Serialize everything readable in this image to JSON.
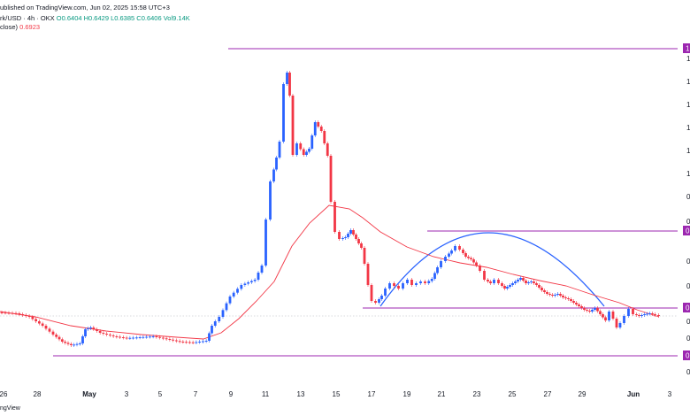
{
  "header": {
    "published": "ublished on TradingView.com, Jun 02, 2025 15:58 UTC+3",
    "symbol": "rk/USD · 4h · OKX",
    "ohlc": "O0.6404 H0.6429 L0.6385 C0.6406 Vol9.14K",
    "ma_label": "close)",
    "ma_value": "0.6923"
  },
  "footer": {
    "brand": "ngView"
  },
  "x_axis": {
    "ticks": [
      "26",
      "28",
      "May",
      "3",
      "5",
      "7",
      "9",
      "11",
      "13",
      "15",
      "17",
      "19",
      "21",
      "23",
      "25",
      "27",
      "29",
      "Jun",
      "3"
    ]
  },
  "price_axis": {
    "tick_labels": [
      "1",
      "1",
      "1",
      "1",
      "1",
      "1",
      "0",
      "0",
      "0",
      "0",
      "0",
      "0",
      "0"
    ],
    "badges": [
      "1",
      "0",
      "0",
      "0"
    ]
  },
  "colors": {
    "up": "#2962ff",
    "down": "#f23645",
    "ma": "#f23645",
    "level": "#9c27b0",
    "arc": "#2962ff",
    "badge": "#9c27b0"
  },
  "icons": {
    "logo": "tradingview-logo-icon"
  }
}
